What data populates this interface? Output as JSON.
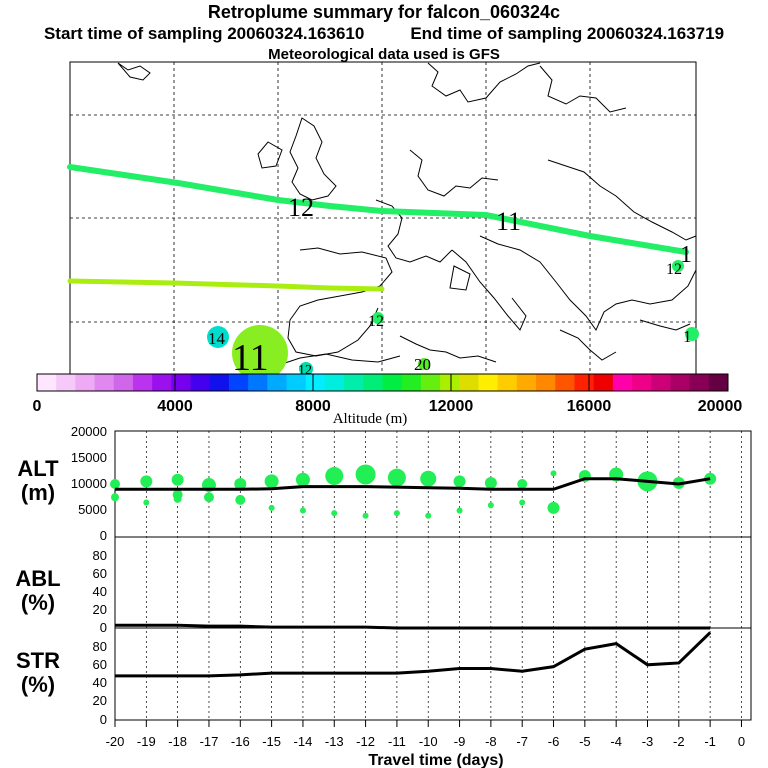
{
  "header": {
    "title": "Retroplume summary for falcon_060324c",
    "start_label": "Start time of sampling 20060324.163610",
    "end_label": "End time of sampling 20060324.163719",
    "met_label": "Meteorological data used is GFS"
  },
  "map": {
    "lines": [
      {
        "name": "plume-track-1",
        "color": "#22ee66"
      },
      {
        "name": "plume-track-2",
        "color": "#aaee11"
      }
    ],
    "labels": [
      {
        "text": "12",
        "name": "map-label-12a"
      },
      {
        "text": "11",
        "name": "map-label-11a"
      },
      {
        "text": "1",
        "name": "map-label-1a"
      },
      {
        "text": "12",
        "name": "map-label-12b"
      },
      {
        "text": "12",
        "name": "map-label-12c"
      },
      {
        "text": "14",
        "name": "map-label-14"
      },
      {
        "text": "11",
        "name": "map-label-11b"
      },
      {
        "text": "12",
        "name": "map-label-12d"
      },
      {
        "text": "20",
        "name": "map-label-20"
      },
      {
        "text": "1",
        "name": "map-label-1b"
      }
    ]
  },
  "colorbar": {
    "title": "Altitude (m)",
    "ticks": [
      "0",
      "4000",
      "8000",
      "12000",
      "16000",
      "20000"
    ],
    "colors": [
      "#ffe6ff",
      "#f7c8fa",
      "#eeaaf5",
      "#e088f0",
      "#d066ea",
      "#bb33ee",
      "#9a11ee",
      "#7700ee",
      "#4400ee",
      "#1111ee",
      "#0044ff",
      "#0077ff",
      "#00aaff",
      "#00ccff",
      "#00eeff",
      "#00eedd",
      "#00eeaa",
      "#00ee77",
      "#00ee44",
      "#22ee22",
      "#66ee11",
      "#aaee00",
      "#dddd00",
      "#ffee00",
      "#ffcc00",
      "#ffaa00",
      "#ff8800",
      "#ff5500",
      "#ff2200",
      "#ee0000",
      "#ff00aa",
      "#ee0088",
      "#cc0077",
      "#aa0066",
      "#880055",
      "#660044"
    ]
  },
  "panels": {
    "alt": {
      "label": "ALT",
      "unit": "(m)",
      "ticks": [
        "0",
        "5000",
        "10000",
        "15000",
        "20000"
      ]
    },
    "abl": {
      "label": "ABL",
      "unit": "(%)",
      "ticks": [
        "0",
        "20",
        "40",
        "60",
        "80"
      ]
    },
    "str": {
      "label": "STR",
      "unit": "(%)",
      "ticks": [
        "0",
        "20",
        "40",
        "60",
        "80"
      ]
    }
  },
  "xaxis": {
    "label": "Travel time (days)",
    "ticks": [
      "-20",
      "-19",
      "-18",
      "-17",
      "-16",
      "-15",
      "-14",
      "-13",
      "-12",
      "-11",
      "-10",
      "-9",
      "-8",
      "-7",
      "-6",
      "-5",
      "-4",
      "-3",
      "-2",
      "-1",
      "0"
    ]
  },
  "chart_data": [
    {
      "type": "line",
      "title": "ALT (m)",
      "xlabel": "Travel time (days)",
      "ylabel": "ALT (m)",
      "xlim": [
        -20,
        0
      ],
      "ylim": [
        0,
        20000
      ],
      "x": [
        -20,
        -19,
        -18,
        -17,
        -16,
        -15,
        -14,
        -13,
        -12,
        -11,
        -10,
        -9,
        -8,
        -7,
        -6,
        -5,
        -4,
        -3,
        -2,
        -1
      ],
      "series": [
        {
          "name": "mean altitude",
          "values": [
            9000,
            9000,
            9000,
            9000,
            9000,
            9100,
            9500,
            9500,
            9500,
            9400,
            9300,
            9200,
            9000,
            9000,
            9000,
            11000,
            11000,
            10500,
            10000,
            11000
          ]
        }
      ],
      "clusters": [
        {
          "x": [
            -20,
            -20,
            -19,
            -19,
            -18,
            -18,
            -18,
            -17,
            -17,
            -16,
            -16,
            -15,
            -15,
            -14,
            -14,
            -13,
            -13,
            -12,
            -12,
            -11,
            -11,
            -10,
            -10,
            -9,
            -9,
            -8,
            -8,
            -7,
            -7,
            -6,
            -6,
            -5,
            -4,
            -3,
            -2,
            -1
          ],
          "y": [
            10000,
            7500,
            10500,
            6500,
            10800,
            8000,
            7200,
            9800,
            7500,
            10000,
            7000,
            10500,
            5500,
            10800,
            5000,
            11500,
            4500,
            11800,
            4000,
            11200,
            4500,
            11000,
            4000,
            10500,
            5000,
            10200,
            6000,
            10000,
            6500,
            12000,
            5500,
            11500,
            11800,
            10500,
            10200,
            11000
          ],
          "size": [
            5,
            4,
            6,
            3,
            6,
            5,
            4,
            7,
            5,
            6,
            5,
            7,
            3,
            7,
            3,
            9,
            3,
            10,
            3,
            9,
            3,
            8,
            3,
            6,
            3,
            6,
            3,
            5,
            3,
            3,
            6,
            6,
            7,
            10,
            6,
            6
          ]
        }
      ]
    },
    {
      "type": "line",
      "title": "ABL (%)",
      "xlabel": "Travel time (days)",
      "ylabel": "ABL (%)",
      "xlim": [
        -20,
        0
      ],
      "ylim": [
        0,
        100
      ],
      "x": [
        -20,
        -19,
        -18,
        -17,
        -16,
        -15,
        -14,
        -13,
        -12,
        -11,
        -10,
        -9,
        -8,
        -7,
        -6,
        -5,
        -4,
        -3,
        -2,
        -1
      ],
      "series": [
        {
          "name": "ABL",
          "values": [
            3,
            3,
            3,
            2,
            2,
            1,
            1,
            1,
            1,
            0,
            0,
            0,
            0,
            0,
            0,
            0,
            0,
            0,
            0,
            0
          ]
        }
      ]
    },
    {
      "type": "line",
      "title": "STR (%)",
      "xlabel": "Travel time (days)",
      "ylabel": "STR (%)",
      "xlim": [
        -20,
        0
      ],
      "ylim": [
        0,
        100
      ],
      "x": [
        -20,
        -19,
        -18,
        -17,
        -16,
        -15,
        -14,
        -13,
        -12,
        -11,
        -10,
        -9,
        -8,
        -7,
        -6,
        -5,
        -4,
        -3,
        -2,
        -1
      ],
      "series": [
        {
          "name": "STR",
          "values": [
            48,
            48,
            48,
            48,
            49,
            51,
            51,
            51,
            51,
            51,
            53,
            56,
            56,
            53,
            58,
            77,
            83,
            60,
            62,
            95
          ]
        }
      ]
    }
  ]
}
